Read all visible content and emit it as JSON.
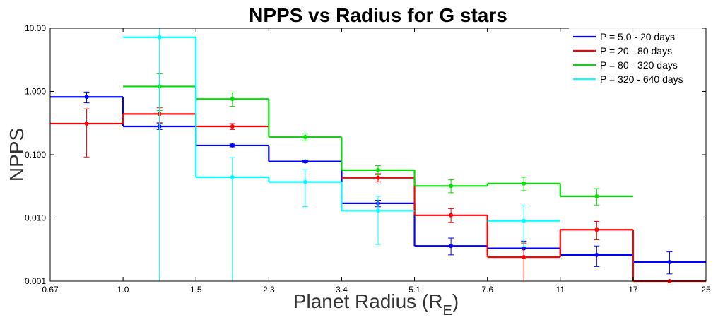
{
  "chart_data": {
    "type": "line",
    "step": true,
    "title": "NPPS vs Radius for G stars",
    "xlabel": "Planet Radius (R",
    "xlabel_sub": "E",
    "xlabel_close": ")",
    "ylabel": "NPPS",
    "x_ticks": [
      "0.67",
      "1.0",
      "1.5",
      "2.3",
      "3.4",
      "5.1",
      "7.6",
      "11",
      "17",
      "25"
    ],
    "y_ticks": [
      "0.001",
      "0.010",
      "0.100",
      "1.000",
      "10.00"
    ],
    "y_scale": "log",
    "ylim": [
      0.001,
      10
    ],
    "legend_position": "top-right",
    "series": [
      {
        "name": "P = 5.0 - 20 days",
        "color": "#0000ff",
        "values": [
          0.82,
          0.28,
          0.14,
          0.078,
          0.017,
          0.0036,
          0.0033,
          0.0026,
          0.002
        ],
        "err_lo": [
          0.66,
          0.25,
          0.133,
          0.075,
          0.015,
          0.0026,
          0.0024,
          0.0017,
          0.0013
        ],
        "err_hi": [
          0.98,
          0.31,
          0.147,
          0.081,
          0.019,
          0.0048,
          0.0043,
          0.0036,
          0.0029
        ]
      },
      {
        "name": "P = 20 - 80 days",
        "color": "#ff0000",
        "values": [
          0.31,
          0.44,
          0.28,
          null,
          0.043,
          0.011,
          0.0024,
          0.0065,
          0.001
        ],
        "err_lo": [
          0.092,
          0.32,
          0.25,
          null,
          0.037,
          0.0085,
          0.001,
          0.0045,
          0.001
        ],
        "err_hi": [
          0.53,
          0.55,
          0.31,
          null,
          0.05,
          0.014,
          0.004,
          0.0088,
          0.001
        ]
      },
      {
        "name": "P = 80 - 320 days",
        "color": "#00e000",
        "values": [
          null,
          1.2,
          0.76,
          0.19,
          0.057,
          0.032,
          0.035,
          0.022,
          null
        ],
        "err_lo": [
          null,
          0.5,
          0.58,
          0.165,
          0.048,
          0.025,
          0.027,
          0.016,
          null
        ],
        "err_hi": [
          null,
          1.9,
          0.95,
          0.215,
          0.067,
          0.04,
          0.044,
          0.029,
          null
        ]
      },
      {
        "name": "P = 320 - 640 days",
        "color": "#00ffff",
        "values": [
          null,
          7.2,
          0.044,
          0.037,
          0.013,
          null,
          0.009,
          null,
          null
        ],
        "err_lo": [
          null,
          0.001,
          0.001,
          0.015,
          0.0038,
          null,
          0.0035,
          null,
          null
        ],
        "err_hi": [
          null,
          10,
          0.09,
          0.058,
          0.022,
          null,
          0.0155,
          null,
          null
        ]
      }
    ]
  }
}
